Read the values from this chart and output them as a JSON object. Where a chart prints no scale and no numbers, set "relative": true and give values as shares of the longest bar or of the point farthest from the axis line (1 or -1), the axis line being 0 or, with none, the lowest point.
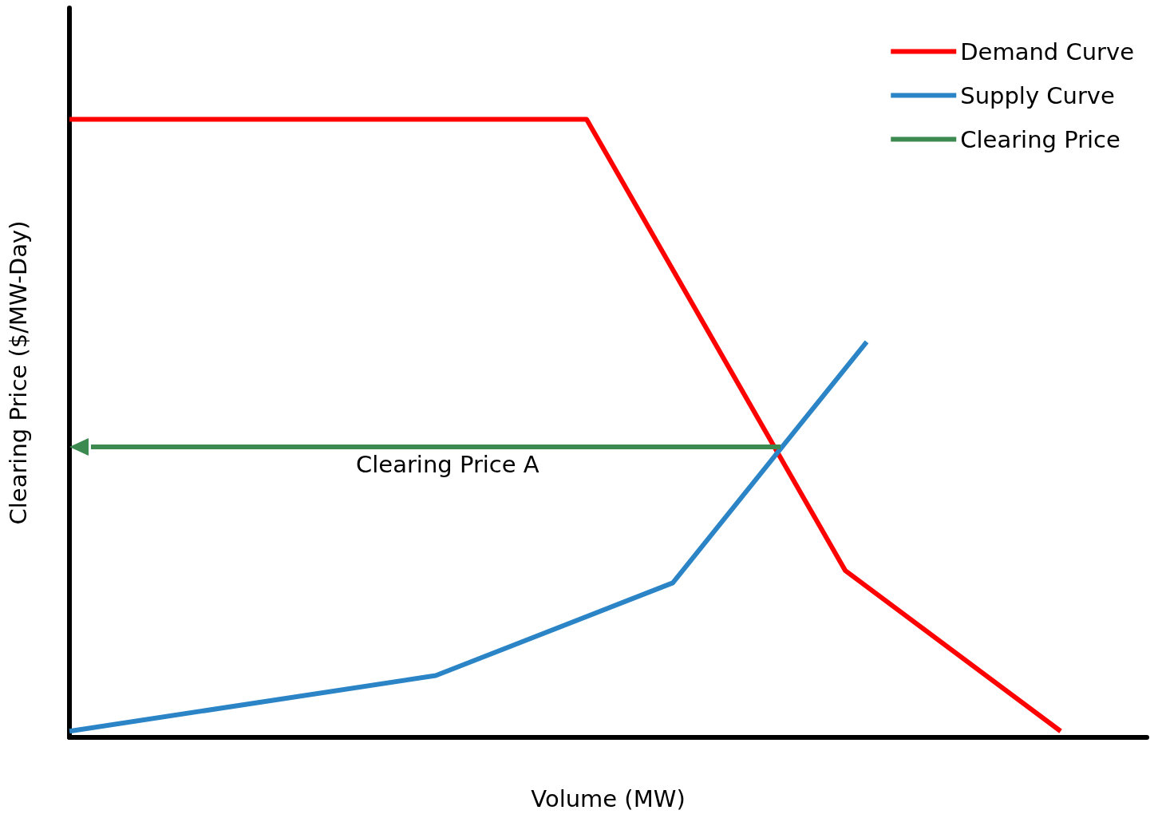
{
  "chart_data": {
    "type": "line",
    "relative": true,
    "xlabel": "Volume (MW)",
    "ylabel": "Clearing Price ($/MW-Day)",
    "legend": "top right",
    "marker": "none",
    "line_style": "solid",
    "grid": false,
    "categories": [
      null,
      null,
      null,
      null,
      null,
      null,
      null,
      null,
      null,
      null,
      null,
      null,
      null,
      null,
      null,
      null,
      null,
      null,
      null,
      null,
      null,
      null,
      null,
      null,
      null,
      null,
      null,
      null,
      null,
      null,
      null,
      null,
      null,
      null,
      null,
      null,
      null,
      null,
      null,
      null,
      null,
      null,
      null,
      null,
      null,
      null,
      null,
      null,
      null,
      null,
      null
    ],
    "series": [
      {
        "name": "Demand Curve",
        "color": "#ff0000",
        "values": [
          1,
          null,
          null,
          null,
          null,
          null,
          null,
          null,
          null,
          null,
          null,
          null,
          null,
          null,
          null,
          null,
          null,
          null,
          null,
          null,
          null,
          null,
          null,
          null,
          1,
          null,
          null,
          null,
          null,
          null,
          null,
          null,
          null,
          null,
          null,
          null,
          0.27,
          null,
          null,
          null,
          null,
          null,
          null,
          null,
          null,
          null,
          0.01,
          null,
          null,
          null,
          null
        ]
      },
      {
        "name": "Supply Curve",
        "color": "#2a84c6",
        "values": [
          0.01,
          null,
          null,
          null,
          null,
          null,
          null,
          null,
          null,
          null,
          null,
          null,
          null,
          null,
          null,
          null,
          null,
          0.1,
          null,
          null,
          null,
          null,
          null,
          null,
          null,
          null,
          null,
          null,
          0.25,
          null,
          null,
          null,
          null,
          null,
          null,
          null,
          null,
          0.64,
          null,
          null,
          null,
          null,
          null,
          null,
          null,
          null,
          null,
          null,
          null,
          null,
          null
        ]
      },
      {
        "name": "Clearing Price",
        "color": "#3c8a4f",
        "values": [
          null,
          0.47,
          null,
          null,
          null,
          null,
          null,
          null,
          null,
          null,
          null,
          null,
          null,
          null,
          null,
          null,
          null,
          null,
          null,
          null,
          null,
          null,
          null,
          null,
          null,
          null,
          null,
          null,
          null,
          null,
          null,
          null,
          null,
          0.47,
          null,
          null,
          null,
          null,
          null,
          null,
          null,
          null,
          null,
          null,
          null,
          null,
          null,
          null,
          null,
          null,
          null
        ]
      }
    ],
    "annotations": [
      "Clearing Price A"
    ]
  }
}
